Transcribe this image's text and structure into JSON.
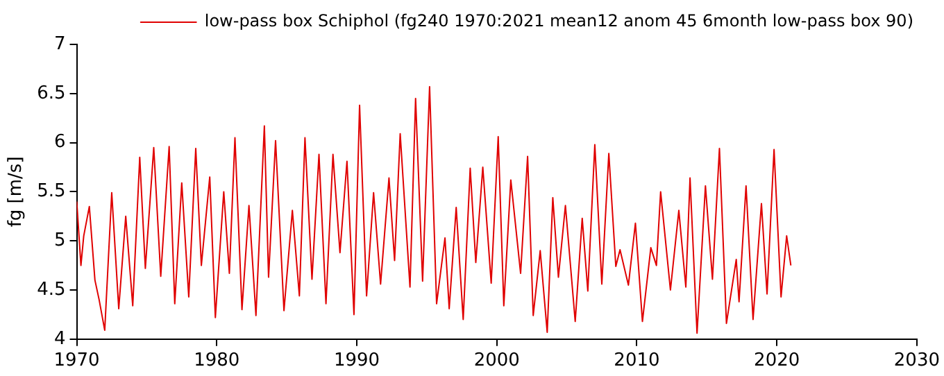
{
  "chart_data": {
    "type": "line",
    "ylabel": "fg [m/s]",
    "xlim": [
      1970,
      2030
    ],
    "xticks": [
      1970,
      1980,
      1990,
      2000,
      2010,
      2020,
      2030
    ],
    "ylim": [
      4,
      7
    ],
    "yticks": [
      4,
      4.5,
      5,
      5.5,
      6,
      6.5,
      7
    ],
    "grid": false,
    "legend": "top right",
    "marker": "none",
    "line_style": "solid",
    "series": [
      {
        "name": "low-pass box Schiphol (fg240 1970:2021 mean12 anom 45 6month low-pass box 90)",
        "color": "#e00000",
        "x": [
          1970.0,
          1970.3,
          1970.5,
          1970.9,
          1971.3,
          1971.6,
          1972.0,
          1972.5,
          1973.0,
          1973.5,
          1974.0,
          1974.5,
          1974.9,
          1975.5,
          1976.0,
          1976.6,
          1977.0,
          1977.5,
          1978.0,
          1978.5,
          1978.9,
          1979.5,
          1979.9,
          1980.5,
          1980.9,
          1981.3,
          1981.8,
          1982.3,
          1982.8,
          1983.4,
          1983.7,
          1984.2,
          1984.8,
          1985.4,
          1985.9,
          1986.3,
          1986.8,
          1987.3,
          1987.8,
          1988.3,
          1988.8,
          1989.3,
          1989.8,
          1990.2,
          1990.7,
          1991.2,
          1991.7,
          1992.3,
          1992.7,
          1993.1,
          1993.8,
          1994.2,
          1994.7,
          1995.2,
          1995.7,
          1996.3,
          1996.6,
          1997.1,
          1997.6,
          1998.1,
          1998.5,
          1999.0,
          1999.6,
          2000.1,
          2000.5,
          2001.0,
          2001.7,
          2002.2,
          2002.6,
          2003.1,
          2003.6,
          2004.0,
          2004.4,
          2004.9,
          2005.6,
          2006.1,
          2006.5,
          2007.0,
          2007.5,
          2008.0,
          2008.5,
          2008.8,
          2009.4,
          2009.9,
          2010.4,
          2011.0,
          2011.4,
          2011.7,
          2012.4,
          2013.0,
          2013.5,
          2013.8,
          2014.3,
          2014.9,
          2015.4,
          2015.9,
          2016.4,
          2017.1,
          2017.3,
          2017.8,
          2018.3,
          2018.9,
          2019.3,
          2019.8,
          2020.3,
          2020.7,
          2021.0
        ],
        "values": [
          5.4,
          4.75,
          5.05,
          5.35,
          4.6,
          4.4,
          4.09,
          5.49,
          4.31,
          5.25,
          4.34,
          5.85,
          4.72,
          5.95,
          4.64,
          5.96,
          4.36,
          5.59,
          4.43,
          5.94,
          4.75,
          5.65,
          4.22,
          5.5,
          4.67,
          6.05,
          4.3,
          5.36,
          4.24,
          6.17,
          4.63,
          6.02,
          4.29,
          5.31,
          4.44,
          6.05,
          4.61,
          5.88,
          4.36,
          5.88,
          4.88,
          5.81,
          4.25,
          6.38,
          4.44,
          5.49,
          4.56,
          5.64,
          4.8,
          6.09,
          4.53,
          6.45,
          4.59,
          6.57,
          4.36,
          5.03,
          4.31,
          5.34,
          4.2,
          5.74,
          4.78,
          5.75,
          4.57,
          6.06,
          4.34,
          5.62,
          4.67,
          5.86,
          4.24,
          4.9,
          4.07,
          5.44,
          4.63,
          5.36,
          4.18,
          5.23,
          4.49,
          5.98,
          4.56,
          5.89,
          4.74,
          4.91,
          4.55,
          5.18,
          4.18,
          4.93,
          4.75,
          5.5,
          4.5,
          5.31,
          4.53,
          5.64,
          4.06,
          5.56,
          4.61,
          5.94,
          4.16,
          4.81,
          4.38,
          5.56,
          4.2,
          5.38,
          4.46,
          5.93,
          4.43,
          5.05,
          4.75
        ]
      }
    ]
  }
}
